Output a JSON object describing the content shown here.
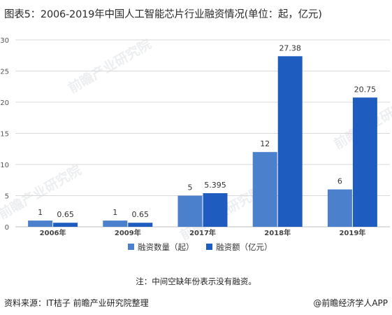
{
  "title": "图表5：2006-2019年中国人工智能芯片行业融资情况(单位：起，亿元)",
  "note": "注：中间空缺年份表示没有融资。",
  "source": "资料来源：IT桔子 前瞻产业研究院整理",
  "credit": "@前瞻经济学人APP",
  "watermark": "前瞻产业研究院",
  "colors": {
    "count": "#4a80cc",
    "amount": "#1f5cbf",
    "grid": "#d9d9d9",
    "axis": "#bfbfbf"
  },
  "chart_data": {
    "type": "bar",
    "categories": [
      "2006年",
      "2009年",
      "2017年",
      "2018年",
      "2019年"
    ],
    "series": [
      {
        "name": "融资数量（起）",
        "values": [
          1,
          1,
          5,
          12,
          6
        ],
        "labels": [
          "1",
          "1",
          "5",
          "12",
          "6"
        ]
      },
      {
        "name": "融资额（亿元）",
        "values": [
          0.65,
          0.65,
          5.395,
          27.38,
          20.75
        ],
        "labels": [
          "0.65",
          "0.65",
          "5.395",
          "27.38",
          "20.75"
        ]
      }
    ],
    "ylim": [
      0,
      30
    ],
    "yticks": [
      0,
      5,
      10,
      15,
      20,
      25,
      30
    ],
    "grid": true,
    "legend": "bottom-center"
  }
}
